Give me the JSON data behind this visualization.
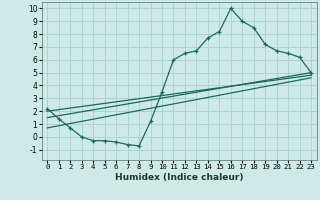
{
  "xlabel": "Humidex (Indice chaleur)",
  "bg_color": "#ceeae6",
  "grid_color": "#aed4d0",
  "line_color": "#1a6b5a",
  "xlim": [
    -0.5,
    23.5
  ],
  "ylim": [
    -1.8,
    10.5
  ],
  "xticks": [
    0,
    1,
    2,
    3,
    4,
    5,
    6,
    7,
    8,
    9,
    10,
    11,
    12,
    13,
    14,
    15,
    16,
    17,
    18,
    19,
    20,
    21,
    22,
    23
  ],
  "yticks": [
    -1,
    0,
    1,
    2,
    3,
    4,
    5,
    6,
    7,
    8,
    9,
    10
  ],
  "line1_x": [
    0,
    1,
    2,
    3,
    4,
    5,
    6,
    7,
    8,
    9,
    10,
    11,
    12,
    13,
    14,
    15,
    16,
    17,
    18,
    19,
    20,
    21,
    22,
    23
  ],
  "line1_y": [
    2.2,
    1.4,
    0.7,
    0.0,
    -0.3,
    -0.3,
    -0.4,
    -0.6,
    -0.7,
    1.2,
    3.5,
    6.0,
    6.5,
    6.7,
    7.7,
    8.2,
    10.0,
    9.0,
    8.5,
    7.2,
    6.7,
    6.5,
    6.2,
    5.0
  ],
  "line2_x": [
    0,
    23
  ],
  "line2_y": [
    1.5,
    5.0
  ],
  "line3_x": [
    0,
    23
  ],
  "line3_y": [
    0.7,
    4.6
  ],
  "line4_x": [
    0,
    23
  ],
  "line4_y": [
    2.0,
    4.8
  ]
}
